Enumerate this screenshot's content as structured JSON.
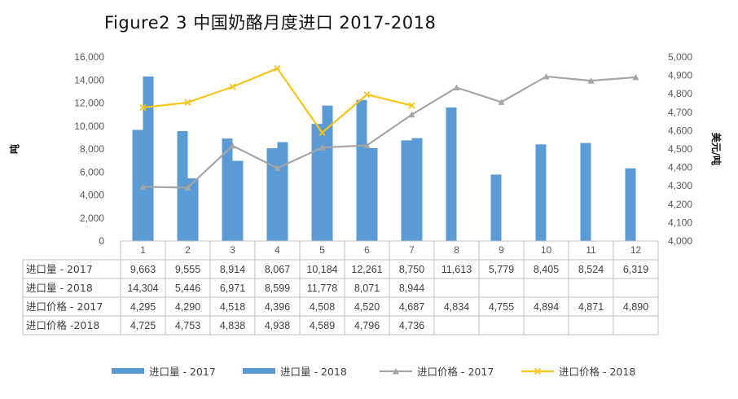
{
  "title": "Figure2 3 中国奶酪月度进口 2017-2018",
  "chart_data": {
    "type": "bar",
    "categories": [
      "1",
      "2",
      "3",
      "4",
      "5",
      "6",
      "7",
      "8",
      "9",
      "10",
      "11",
      "12"
    ],
    "ylabel": "吨",
    "y2label": "美元/吨",
    "ylim": [
      0,
      16000
    ],
    "y2lim": [
      4000,
      5000
    ],
    "yticks": [
      "0",
      "2,000",
      "4,000",
      "6,000",
      "8,000",
      "10,000",
      "12,000",
      "14,000",
      "16,000"
    ],
    "y2ticks": [
      "4,000",
      "4,100",
      "4,200",
      "4,300",
      "4,400",
      "4,500",
      "4,600",
      "4,700",
      "4,800",
      "4,900",
      "5,000"
    ],
    "series": [
      {
        "name": "进口量 - 2017",
        "kind": "bar",
        "axis": "left",
        "color": "#5b9bd5",
        "values": [
          9663,
          9555,
          8914,
          8067,
          10184,
          12261,
          8750,
          11613,
          5779,
          8405,
          8524,
          6319
        ],
        "labels": [
          "9,663",
          "9,555",
          "8,914",
          "8,067",
          "10,184",
          "12,261",
          "8,750",
          "11,613",
          "5,779",
          "8,405",
          "8,524",
          "6,319"
        ]
      },
      {
        "name": "进口量 - 2018",
        "kind": "bar",
        "axis": "left",
        "color": "#5b9bd5",
        "values": [
          14304,
          5446,
          6971,
          8599,
          11778,
          8071,
          8944,
          null,
          null,
          null,
          null,
          null
        ],
        "labels": [
          "14,304",
          "5,446",
          "6,971",
          "8,599",
          "11,778",
          "8,071",
          "8,944",
          "",
          "",
          "",
          "",
          ""
        ]
      },
      {
        "name": "进口价格 - 2017",
        "kind": "line",
        "axis": "right",
        "color": "#a5a5a5",
        "values": [
          4295,
          4290,
          4518,
          4396,
          4508,
          4520,
          4687,
          4834,
          4755,
          4894,
          4871,
          4890
        ],
        "labels": [
          "4,295",
          "4,290",
          "4,518",
          "4,396",
          "4,508",
          "4,520",
          "4,687",
          "4,834",
          "4,755",
          "4,894",
          "4,871",
          "4,890"
        ]
      },
      {
        "name": "进口价格 -2018",
        "kind": "line",
        "axis": "right",
        "color": "#f5c518",
        "values": [
          4725,
          4753,
          4838,
          4938,
          4589,
          4796,
          4736,
          null,
          null,
          null,
          null,
          null
        ],
        "labels": [
          "4,725",
          "4,753",
          "4,838",
          "4,938",
          "4,589",
          "4,796",
          "4,736",
          "",
          "",
          "",
          "",
          ""
        ]
      }
    ],
    "legend_position": "bottom",
    "legend": [
      "进口量 - 2017",
      "进口量 - 2018",
      "进口价格 - 2017",
      "进口价格 - 2018"
    ]
  }
}
